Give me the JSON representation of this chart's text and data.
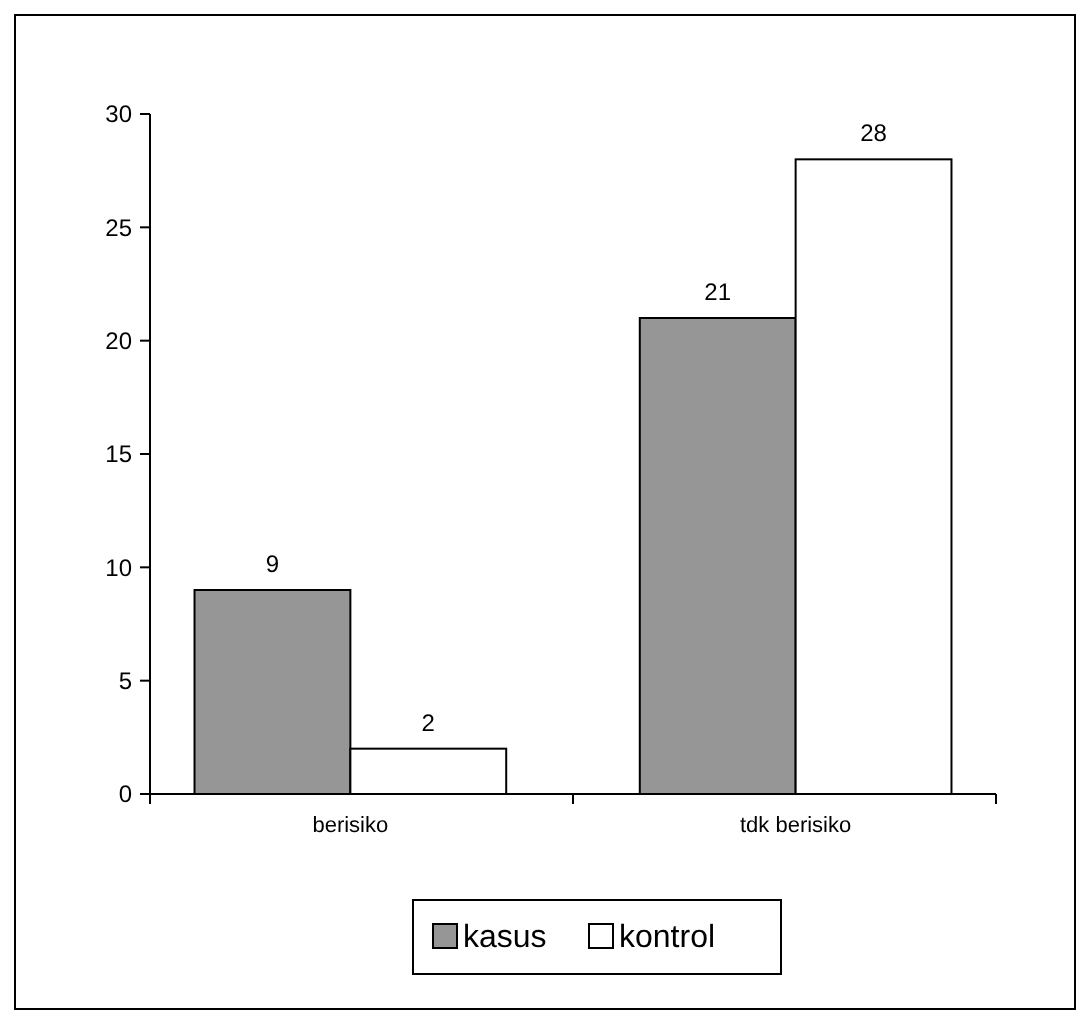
{
  "chart_data": {
    "type": "bar",
    "categories": [
      "berisiko",
      "tdk berisiko"
    ],
    "series": [
      {
        "name": "kasus",
        "color": "#969696",
        "values": [
          9,
          21
        ]
      },
      {
        "name": "kontrol",
        "color": "#ffffff",
        "values": [
          2,
          28
        ]
      }
    ],
    "ylim": [
      0,
      30
    ],
    "yticks": [
      0,
      5,
      10,
      15,
      20,
      25,
      30
    ],
    "data_labels": true,
    "grid": false,
    "legend": "bottom"
  }
}
